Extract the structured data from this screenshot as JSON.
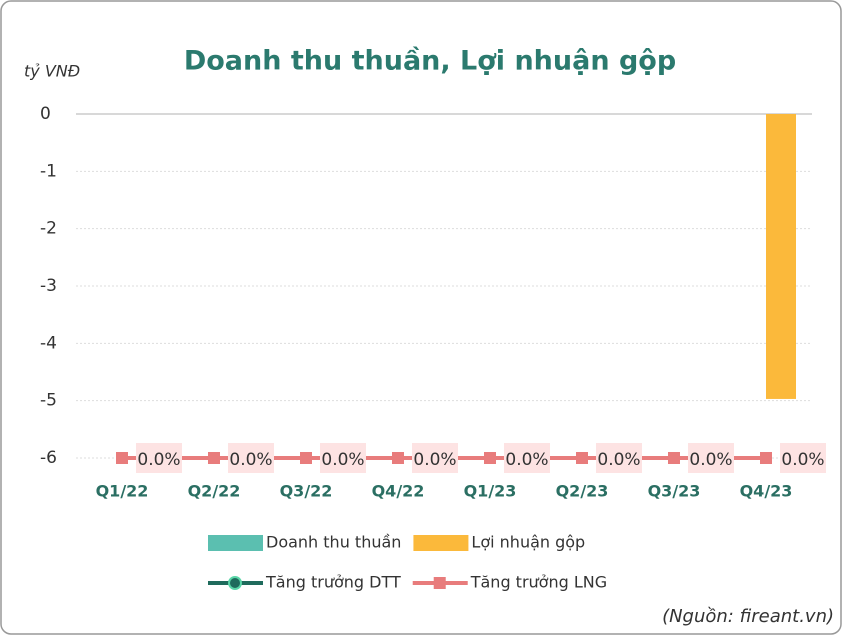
{
  "chart_data": {
    "type": "bar",
    "title": "Doanh thu thuần, Lợi nhuận gộp",
    "y_label": "tỷ VNĐ",
    "source": "(Nguồn: fireant.vn)",
    "categories": [
      "Q1/22",
      "Q2/22",
      "Q3/22",
      "Q4/22",
      "Q1/23",
      "Q2/23",
      "Q3/23",
      "Q4/23"
    ],
    "series": [
      {
        "name": "Doanh thu thuần",
        "type": "bar",
        "color": "#5bbfb0",
        "values": [
          0,
          0,
          0,
          0,
          0,
          0,
          0,
          0
        ]
      },
      {
        "name": "Lợi nhuận gộp",
        "type": "bar",
        "color": "#fbb93b",
        "values": [
          0,
          0,
          0,
          0,
          0,
          0,
          0,
          -4.97
        ]
      },
      {
        "name": "Tăng trưởng DTT",
        "type": "line",
        "axis": "y2",
        "color": "#1f6b5c",
        "marker": "circle",
        "values": [
          0,
          0,
          0,
          0,
          0,
          0,
          0,
          0
        ]
      },
      {
        "name": "Tăng trưởng LNG",
        "type": "line",
        "axis": "y2",
        "color": "#e87c7c",
        "marker": "square",
        "values": [
          0,
          0,
          0,
          0,
          0,
          0,
          0,
          0
        ],
        "value_labels": [
          "0.0%",
          "0.0%",
          "0.0%",
          "0.0%",
          "0.0%",
          "0.0%",
          "0.0%",
          "0.0%"
        ]
      }
    ],
    "ylim": [
      -6,
      0
    ],
    "yticks": [
      0,
      -1,
      -2,
      -3,
      -4,
      -5,
      -6
    ],
    "y2lim": [
      0,
      1
    ],
    "grid": true
  }
}
